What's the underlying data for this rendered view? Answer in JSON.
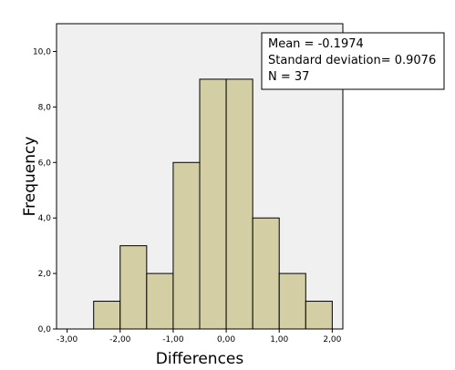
{
  "chart_data": {
    "type": "bar",
    "subtype": "histogram",
    "xlabel": "Differences",
    "ylabel": "Frequency",
    "xlim": [
      -3.2,
      2.2
    ],
    "ylim": [
      0,
      11
    ],
    "x_ticks": [
      {
        "value": -3,
        "label": "-3,00"
      },
      {
        "value": -2,
        "label": "-2,00"
      },
      {
        "value": -1,
        "label": "-1,00"
      },
      {
        "value": 0,
        "label": "0,00"
      },
      {
        "value": 1,
        "label": "1,00"
      },
      {
        "value": 2,
        "label": "2,00"
      }
    ],
    "y_ticks": [
      {
        "value": 0,
        "label": "0,0"
      },
      {
        "value": 2,
        "label": "2,0"
      },
      {
        "value": 4,
        "label": "4,0"
      },
      {
        "value": 6,
        "label": "6,0"
      },
      {
        "value": 8,
        "label": "8,0"
      },
      {
        "value": 10,
        "label": "10,0"
      }
    ],
    "bins": [
      {
        "start": -2.5,
        "end": -2.0,
        "count": 1
      },
      {
        "start": -2.0,
        "end": -1.5,
        "count": 3
      },
      {
        "start": -1.5,
        "end": -1.0,
        "count": 2
      },
      {
        "start": -1.0,
        "end": -0.5,
        "count": 6
      },
      {
        "start": -0.5,
        "end": 0.0,
        "count": 9
      },
      {
        "start": 0.0,
        "end": 0.5,
        "count": 9
      },
      {
        "start": 0.5,
        "end": 1.0,
        "count": 4
      },
      {
        "start": 1.0,
        "end": 1.5,
        "count": 2
      },
      {
        "start": 1.5,
        "end": 2.0,
        "count": 1
      }
    ],
    "stats_lines": [
      "Mean = -0.1974",
      "Standard deviation= 0.9076",
      "N = 37"
    ],
    "legend_position": "top-right",
    "grid": false,
    "colors": {
      "plot_background": "#f0f0f0",
      "bar_fill": "#d3cea4",
      "bar_stroke": "#000000",
      "axis": "#000000"
    }
  }
}
